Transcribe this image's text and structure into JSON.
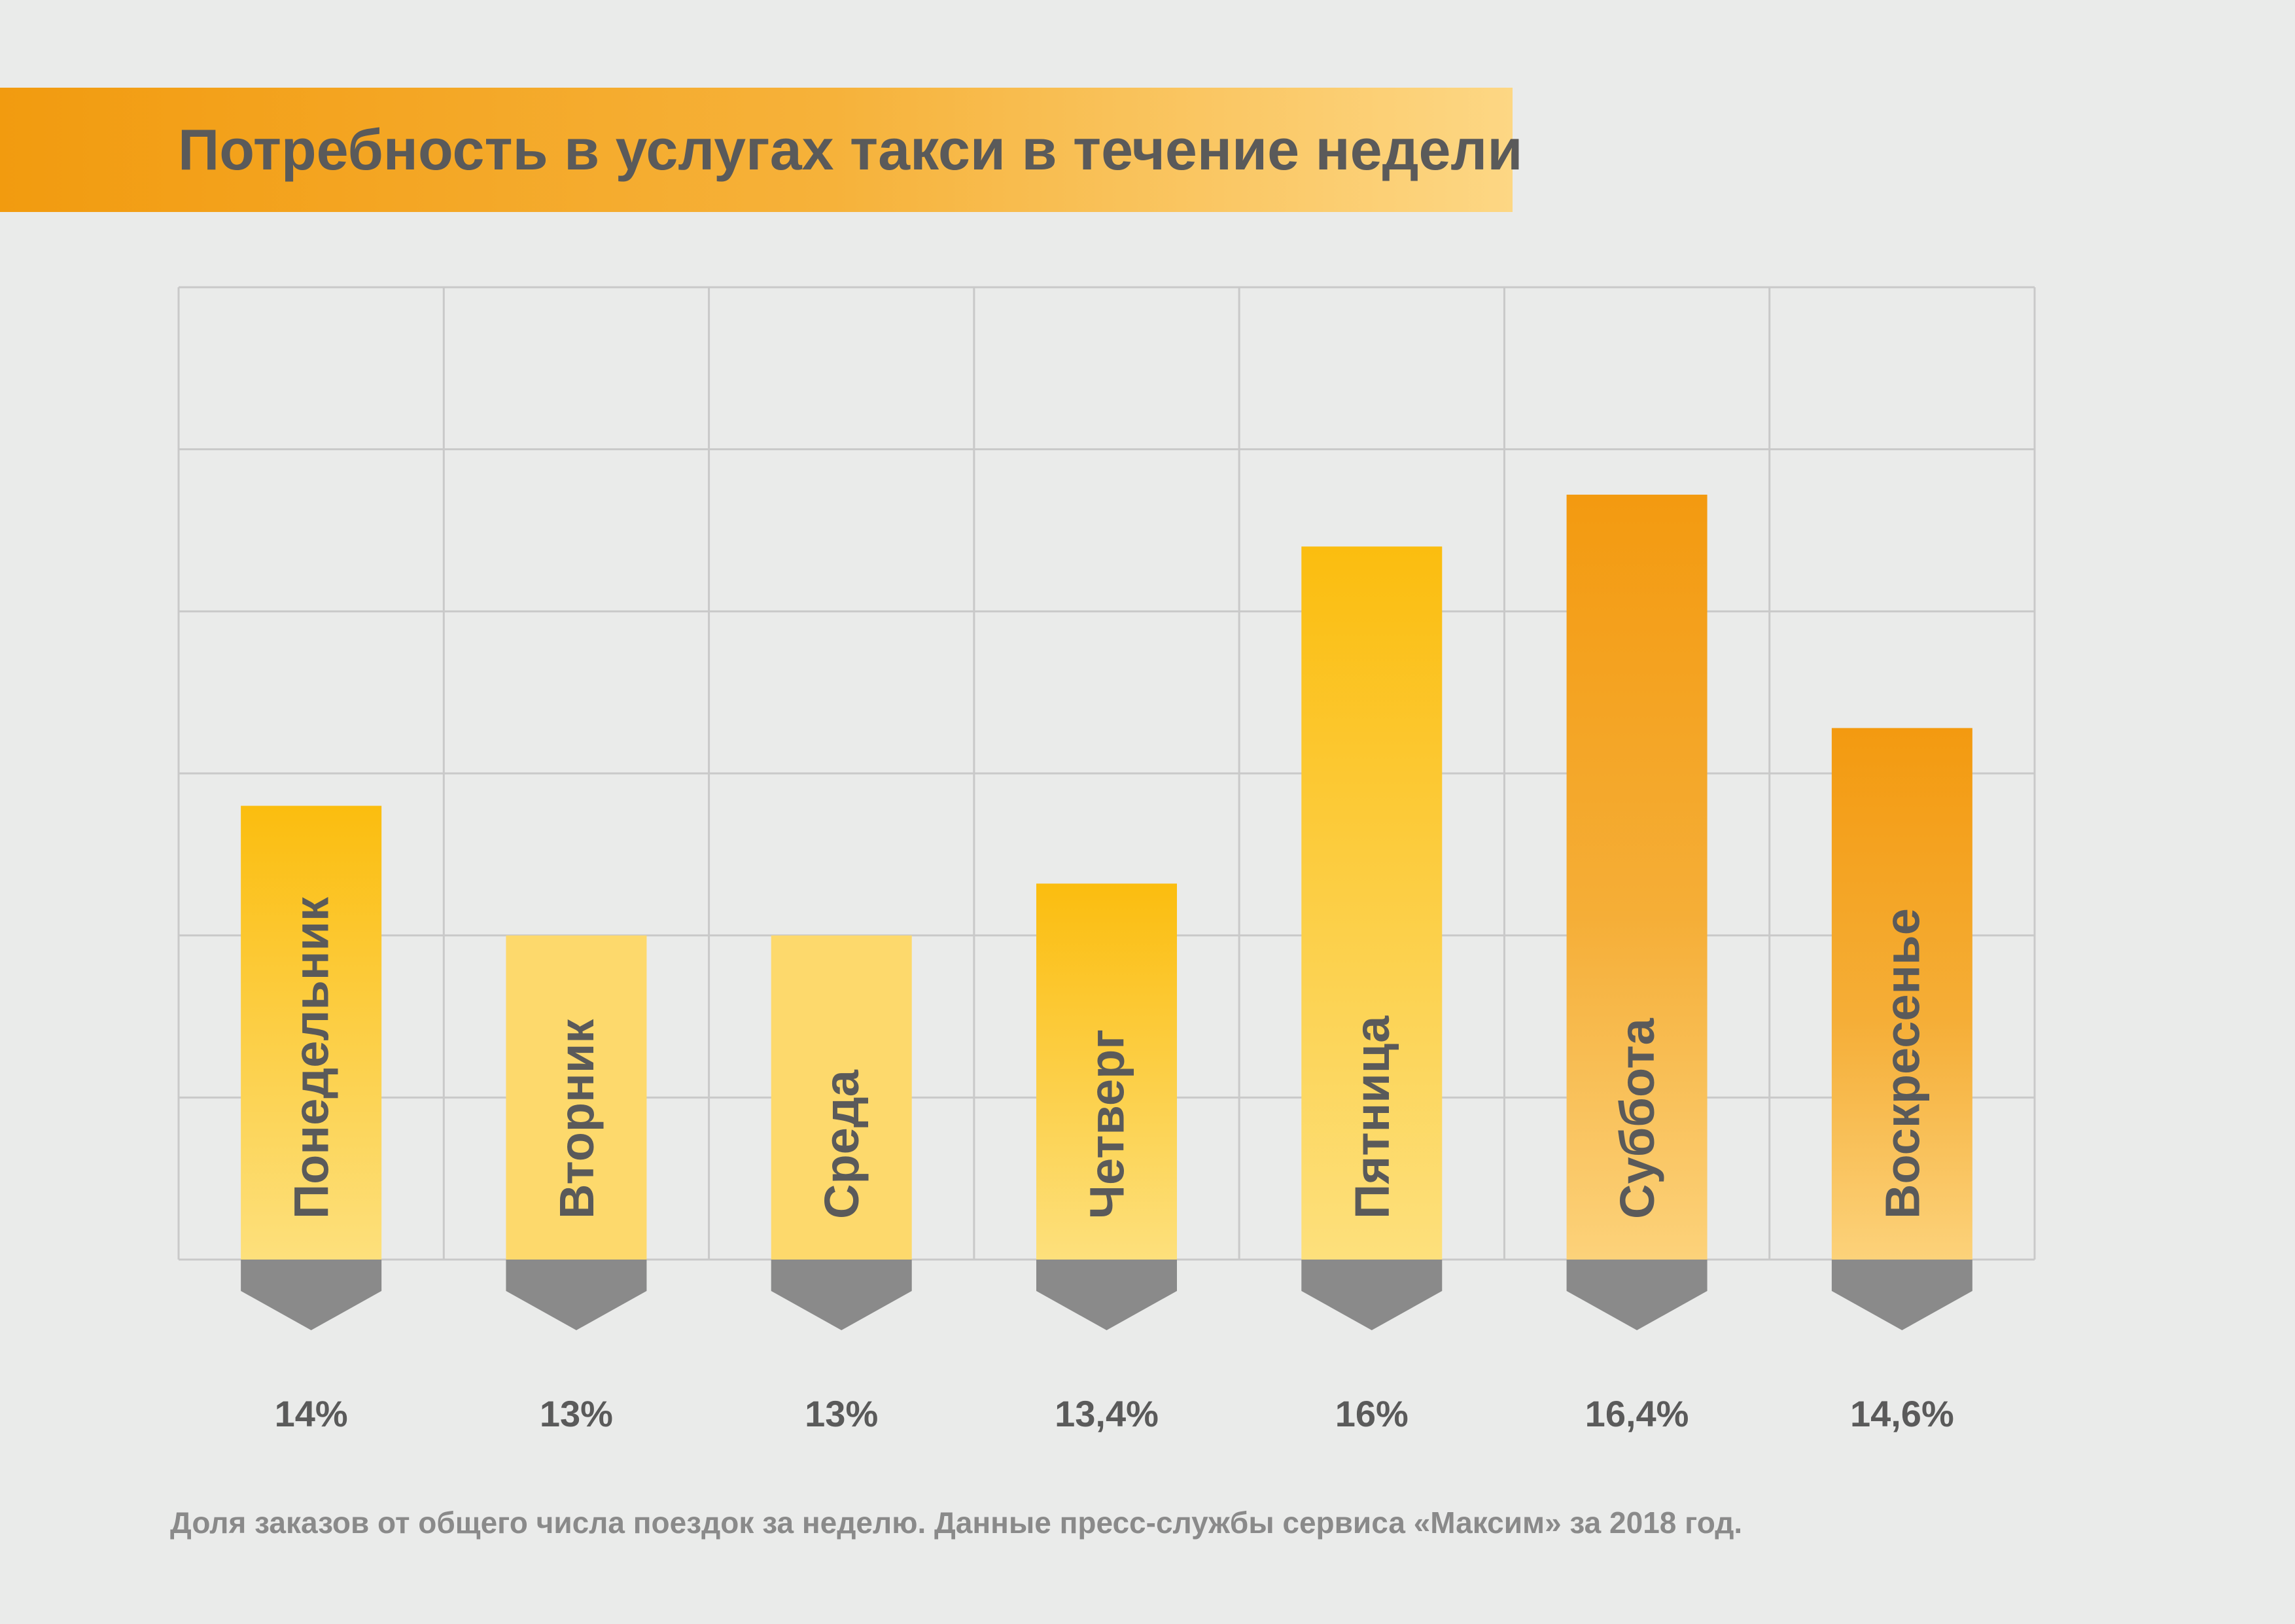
{
  "title": "Потребность в услугах такси в течение недели",
  "footnote": "Доля заказов от общего числа поездок за неделю. Данные пресс-службы сервиса «Максим» за 2018 год.",
  "colors": {
    "background": "#eaebea",
    "grid": "#c9c9c9",
    "marker": "#8a8a8a",
    "text": "#5a5a5a",
    "footnote": "#8a8a8a",
    "bar_light": "#fdd96c",
    "bar_yellow_top": "#fbbd0f",
    "bar_yellow_bottom": "#fde07c",
    "bar_orange_top": "#f39a10",
    "bar_orange_bottom": "#fcd27a"
  },
  "chart_data": {
    "type": "bar",
    "title": "Потребность в услугах такси в течение недели",
    "categories": [
      "Понедельник",
      "Вторник",
      "Среда",
      "Четверг",
      "Пятница",
      "Суббота",
      "Воскресенье"
    ],
    "values": [
      14,
      13,
      13,
      13.4,
      16,
      16.4,
      14.6
    ],
    "value_labels": [
      "14%",
      "13%",
      "13%",
      "13,4%",
      "16%",
      "16,4%",
      "14,6%"
    ],
    "bar_styles": [
      "yellow",
      "light",
      "light",
      "yellow",
      "yellow",
      "orange",
      "orange"
    ],
    "unit": "%",
    "ylim": [
      10.5,
      18
    ],
    "grid_rows": 6,
    "grid_cols": 7,
    "grid": true,
    "xlabel": "",
    "ylabel": ""
  }
}
